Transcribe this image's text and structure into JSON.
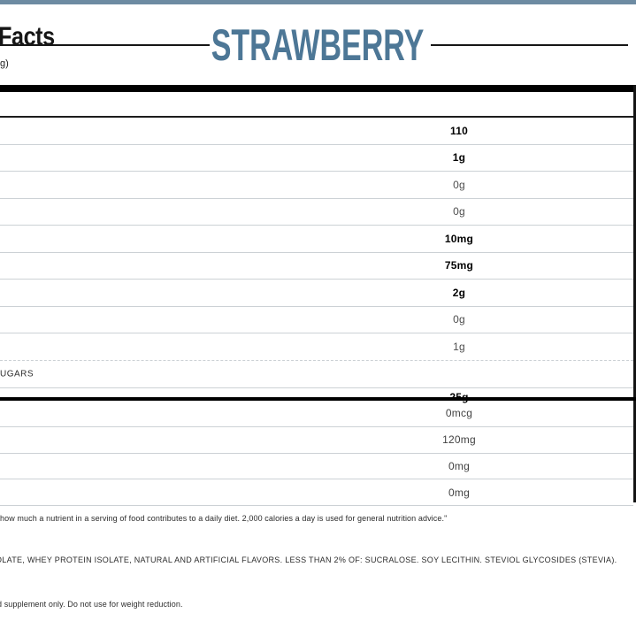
{
  "header": {
    "facts_fragment": "Facts",
    "flavor": "STRAWBERRY",
    "serving_fragment": "g)"
  },
  "colors": {
    "accent_blue": "#4d7796",
    "top_bar_blue": "#6d8ba2"
  },
  "table": {
    "rows": [
      {
        "label_fragment": "",
        "value": "110",
        "bold": true
      },
      {
        "label_fragment": "",
        "value": "1g",
        "bold": true
      },
      {
        "label_fragment": "",
        "value": "0g",
        "bold": false
      },
      {
        "label_fragment": "",
        "value": "0g",
        "bold": false
      },
      {
        "label_fragment": "",
        "value": "10mg",
        "bold": true
      },
      {
        "label_fragment": "",
        "value": "75mg",
        "bold": true
      },
      {
        "label_fragment": "",
        "value": "2g",
        "bold": true
      },
      {
        "label_fragment": "",
        "value": "0g",
        "bold": false
      },
      {
        "label_fragment": "",
        "value": "1g",
        "bold": false
      },
      {
        "label_fragment": "UGARS",
        "value": "",
        "bold": false
      },
      {
        "label_fragment": "",
        "value": "25g",
        "bold": true
      }
    ],
    "mineral_rows": [
      {
        "value": "0mcg"
      },
      {
        "value": "120mg"
      },
      {
        "value": "0mg"
      },
      {
        "value": "0mg"
      }
    ]
  },
  "footnote": "how much a nutrient in a serving of food contributes to a daily diet. 2,000 calories a day is used for general nutrition advice.\"",
  "ingredients": "OLATE, WHEY PROTEIN ISOLATE, NATURAL AND ARTIFICIAL FLAVORS. LESS THAN 2% OF: SUCRALOSE. SOY LECITHIN. STEVIOL GLYCOSIDES (STEVIA).",
  "disclaimer": "d supplement only. Do not use for weight reduction."
}
